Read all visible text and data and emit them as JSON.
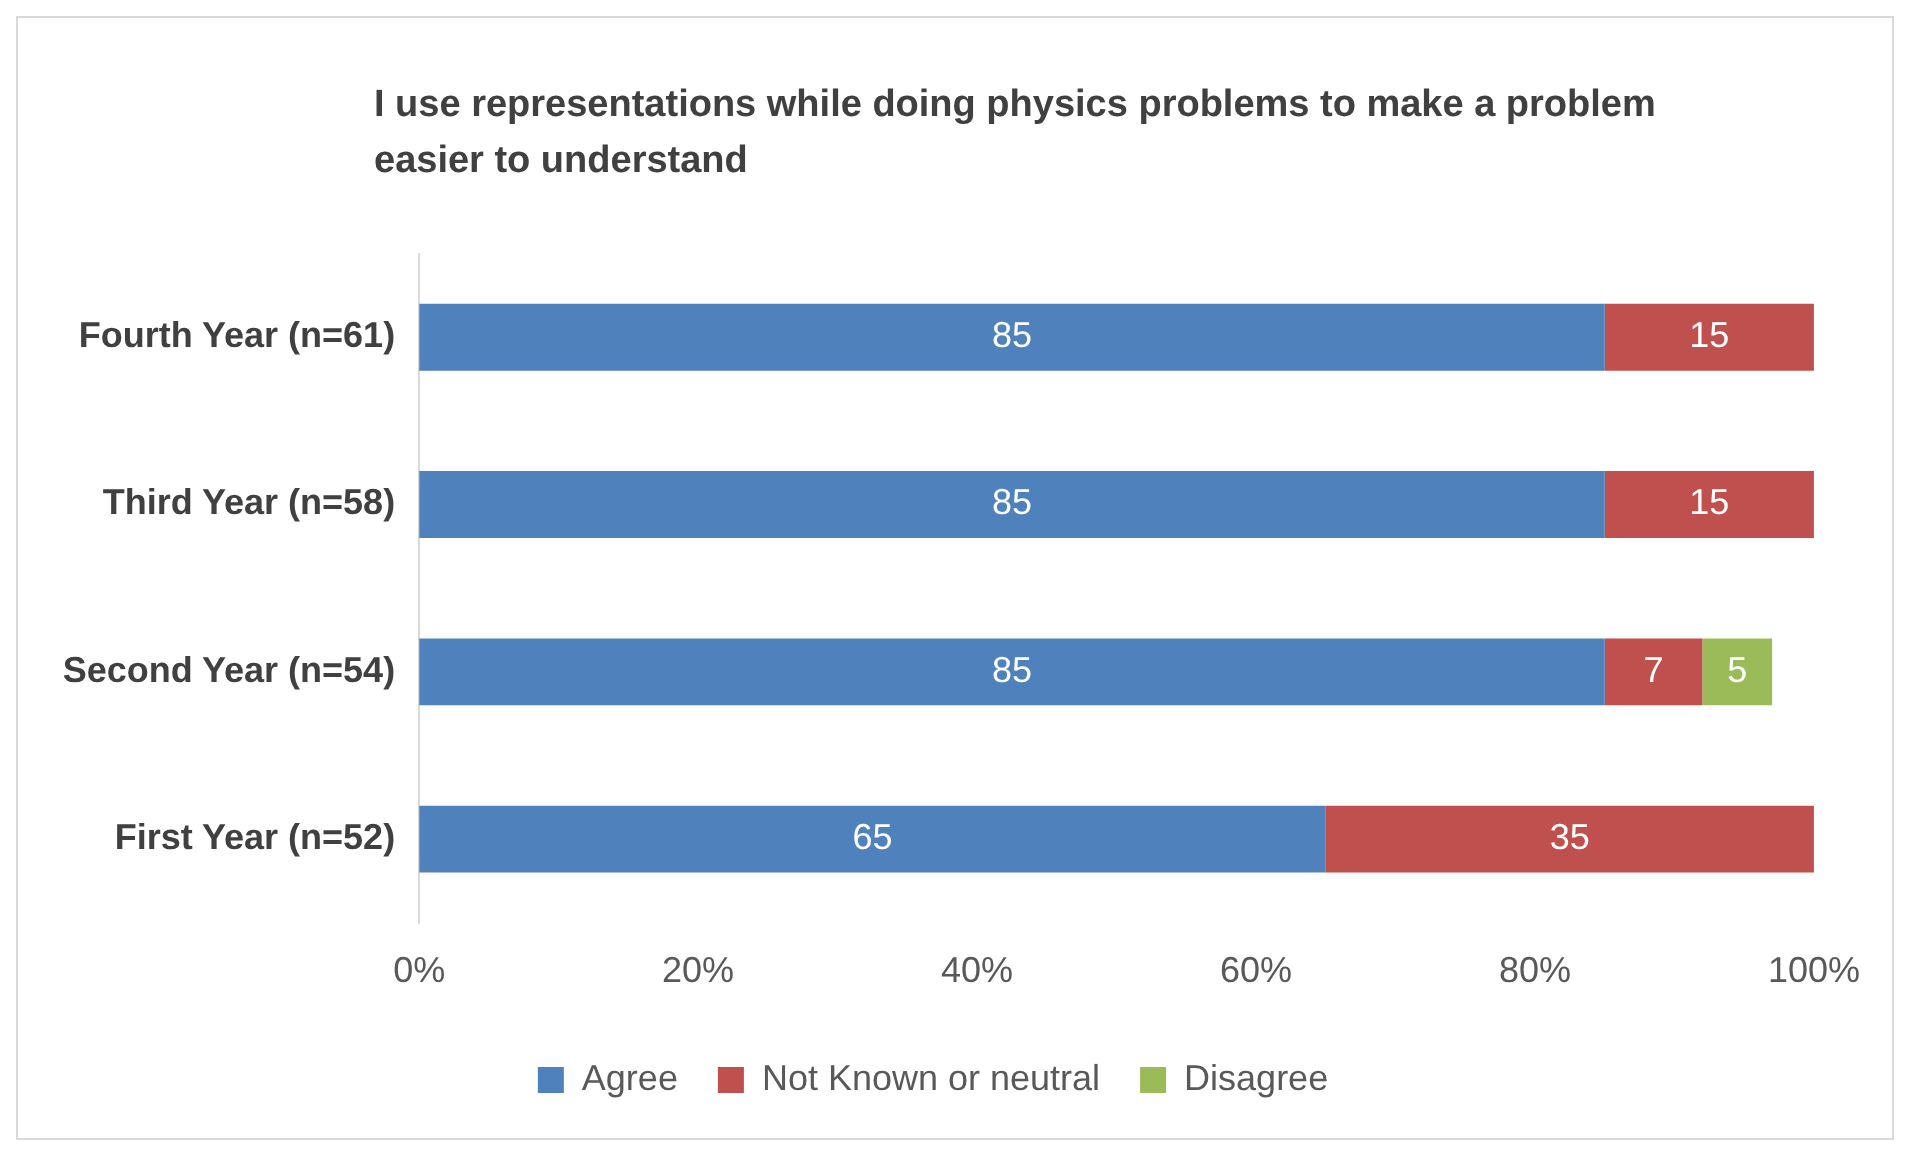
{
  "chart_data": {
    "type": "bar",
    "title": "I use representations while doing physics problems to make a problem easier to understand",
    "orientation": "horizontal",
    "stacked": true,
    "categories": [
      "Fourth Year (n=61)",
      "Third Year (n=58)",
      "Second Year (n=54)",
      "First Year (n=52)"
    ],
    "series": [
      {
        "name": "Agree",
        "color": "#4f81bd",
        "values": [
          85,
          85,
          85,
          65
        ],
        "value_labels": [
          "85",
          "85",
          "85",
          "65"
        ]
      },
      {
        "name": "Not Known or neutral",
        "color": "#c0504d",
        "values": [
          15,
          15,
          7,
          35
        ],
        "value_labels": [
          "15",
          "15",
          "7",
          "35"
        ]
      },
      {
        "name": "Disagree",
        "color": "#9bbb59",
        "values": [
          null,
          null,
          5,
          null
        ],
        "value_labels": [
          null,
          null,
          "5",
          null
        ]
      }
    ],
    "xlim": [
      0,
      100
    ],
    "xticks": [
      {
        "value": 0,
        "label": "0%"
      },
      {
        "value": 20,
        "label": "20%"
      },
      {
        "value": 40,
        "label": "40%"
      },
      {
        "value": 60,
        "label": "60%"
      },
      {
        "value": 80,
        "label": "80%"
      },
      {
        "value": 100,
        "label": "100%"
      }
    ],
    "legend": "bottom"
  }
}
